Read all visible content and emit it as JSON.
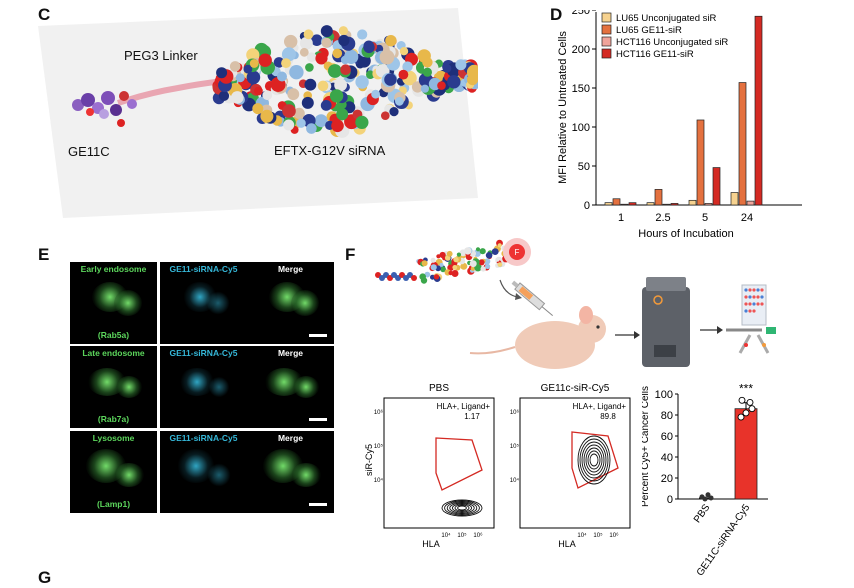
{
  "panels": {
    "C": {
      "letter": "C",
      "labels": {
        "linker": "PEG3 Linker",
        "left": "GE11C",
        "right": "EFTX-G12V siRNA"
      }
    },
    "D": {
      "letter": "D",
      "chart_data": {
        "type": "bar",
        "categories": [
          "1",
          "2.5",
          "5",
          "24"
        ],
        "xlabel": "Hours of Incubation",
        "ylabel": "MFI Relative to Untreated Cells",
        "ylim": [
          0,
          250
        ],
        "yticks": [
          "0",
          "50",
          "100",
          "150",
          "200",
          "250"
        ],
        "legend_position": "top-left",
        "series": [
          {
            "name": "LU65 Unconjugated siR",
            "color": "#f6d28f",
            "values": [
              3,
              3,
              6,
              16
            ]
          },
          {
            "name": "LU65 GE11-siR",
            "color": "#e4713f",
            "values": [
              8,
              20,
              109,
              157
            ]
          },
          {
            "name": "HCT116 Unconjugated siR",
            "color": "#f0a49b",
            "values": [
              1,
              1,
              2,
              5
            ]
          },
          {
            "name": "HCT116 GE11-siR",
            "color": "#d42a23",
            "values": [
              3,
              2,
              48,
              242
            ]
          }
        ]
      }
    },
    "E": {
      "letter": "E",
      "rows": [
        {
          "col1": "Early endosome",
          "col2": "GE11-siRNA-Cy5",
          "col3": "Merge",
          "marker": "(Rab5a)"
        },
        {
          "col1": "Late endosome",
          "col2": "GE11-siRNA-Cy5",
          "col3": "Merge",
          "marker": "(Rab7a)"
        },
        {
          "col1": "Lysosome",
          "col2": "GE11-siRNA-Cy5",
          "col3": "Merge",
          "marker": "(Lamp1)"
        }
      ],
      "colors": {
        "green": "#5cd65c",
        "cyan": "#35b7d8"
      }
    },
    "F": {
      "letter": "F",
      "flow": [
        {
          "title": "PBS",
          "gate_label": "HLA+, Ligand+",
          "gate_value": "1.17",
          "xlabel": "HLA",
          "ylabel": "siR-Cy5"
        },
        {
          "title": "GE11c-siR-Cy5",
          "gate_label": "HLA+, Ligand+",
          "gate_value": "89.8",
          "xlabel": "HLA",
          "ylabel": ""
        }
      ],
      "flow_ticks": {
        "x": [
          "10⁴",
          "10⁵",
          "10⁶"
        ],
        "y": [
          "10⁶",
          "10⁵",
          "10⁴"
        ]
      },
      "chart_data": {
        "type": "bar",
        "categories": [
          "PBS",
          "GE11C-siRNA-Cy5"
        ],
        "values": [
          1,
          86
        ],
        "ylabel": "Percent Cy5+ Cancer Cells",
        "ylim": [
          0,
          100
        ],
        "yticks": [
          "0",
          "20",
          "40",
          "60",
          "80",
          "100"
        ],
        "significance": "***",
        "bar_color": "#e8332a"
      }
    },
    "G": {
      "letter": "G"
    }
  }
}
